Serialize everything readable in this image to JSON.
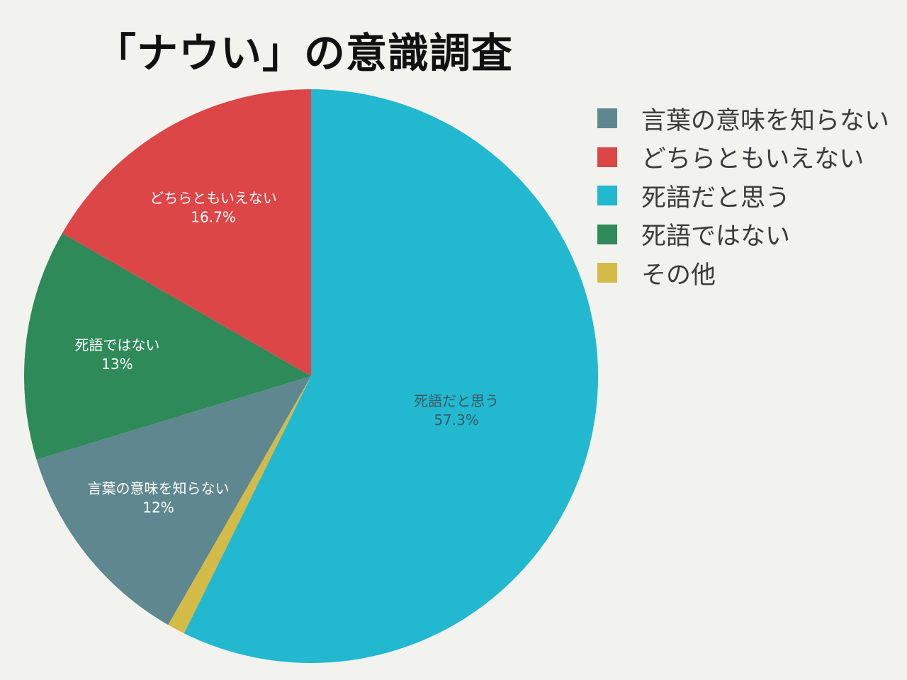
{
  "chart_data": {
    "type": "pie",
    "title": "「ナウい」の意識調査",
    "slices": [
      {
        "label": "死語だと思う",
        "value": 57.3,
        "value_label": "57.3%",
        "color": "#22b8cf",
        "label_color": "#3a5a64"
      },
      {
        "label": "その他",
        "value": 1.0,
        "value_label": "",
        "color": "#d4bb48",
        "label_color": "#ffffff"
      },
      {
        "label": "言葉の意味を知らない",
        "value": 12,
        "value_label": "12%",
        "color": "#5f8790",
        "label_color": "#ffffff"
      },
      {
        "label": "死語ではない",
        "value": 13,
        "value_label": "13%",
        "color": "#2e8a58",
        "label_color": "#ffffff"
      },
      {
        "label": "どちらともいえない",
        "value": 16.7,
        "value_label": "16.7%",
        "color": "#dd4647",
        "label_color": "#ffffff"
      }
    ],
    "start_angle_deg": 0,
    "direction": "clockwise",
    "legend": {
      "position": "right",
      "entries": [
        {
          "label": "言葉の意味を知らない",
          "color": "#5f8790"
        },
        {
          "label": "どちらともいえない",
          "color": "#dd4647"
        },
        {
          "label": "死語だと思う",
          "color": "#22b8cf"
        },
        {
          "label": "死語ではない",
          "color": "#2e8a58"
        },
        {
          "label": "その他",
          "color": "#d4bb48"
        }
      ]
    }
  }
}
